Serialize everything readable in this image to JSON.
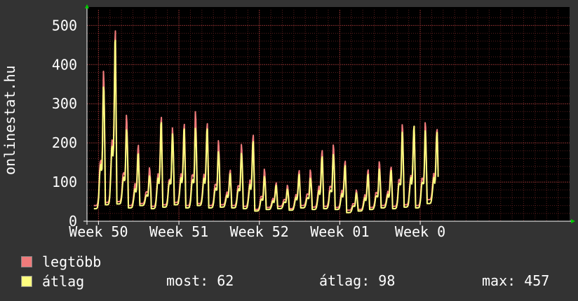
{
  "chart_data": {
    "type": "line",
    "ylabel": "onlinestat.hu",
    "ylim": [
      0,
      540
    ],
    "y_ticks": [
      0,
      100,
      200,
      300,
      400,
      500
    ],
    "x_tick_labels": [
      "Week 50",
      "Week 51",
      "Week 52",
      "Week 01",
      "Week 0"
    ],
    "grid": true,
    "x_start": 0,
    "x_end": 42,
    "series": [
      {
        "name": "legtöbb",
        "color": "#f07b7b",
        "daily_peaks": [
          380,
          480,
          268,
          192,
          135,
          263,
          235,
          246,
          275,
          248,
          202,
          130,
          192,
          220,
          130,
          98,
          90,
          130,
          128,
          182,
          190,
          155,
          78,
          133,
          148,
          140,
          240,
          248,
          245,
          240
        ],
        "daily_troughs": [
          40,
          48,
          50,
          40,
          45,
          38,
          42,
          48,
          40,
          45,
          40,
          42,
          40,
          38,
          30,
          35,
          38,
          32,
          40,
          36,
          38,
          35,
          28,
          30,
          35,
          40,
          38,
          42,
          40,
          55
        ]
      },
      {
        "name": "átlag",
        "color": "#ffff80",
        "daily_peaks": [
          355,
          457,
          240,
          170,
          118,
          248,
          228,
          232,
          242,
          232,
          180,
          120,
          175,
          200,
          115,
          90,
          82,
          118,
          110,
          162,
          170,
          140,
          72,
          118,
          132,
          128,
          225,
          240,
          228,
          225
        ],
        "daily_troughs": [
          32,
          42,
          44,
          34,
          40,
          32,
          36,
          42,
          34,
          40,
          34,
          36,
          34,
          32,
          26,
          30,
          32,
          28,
          34,
          30,
          32,
          30,
          22,
          26,
          30,
          34,
          32,
          36,
          34,
          45
        ]
      }
    ]
  },
  "legend": {
    "max_label": "legtöbb",
    "avg_label": "átlag",
    "max_color": "#f07b7b",
    "avg_color": "#ffff80"
  },
  "stats": {
    "current": "most: 62",
    "average": "átlag: 98",
    "maximum": "max: 457"
  },
  "colors": {
    "background": "#333333",
    "plot_background": "#000000",
    "grid": "#5a1e1e",
    "axis": "#ffffff",
    "arrow": "#00cc00"
  }
}
